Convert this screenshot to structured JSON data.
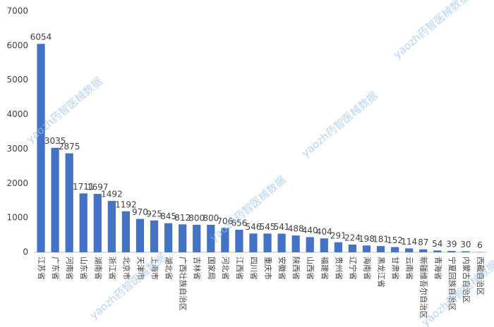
{
  "chart_data": {
    "type": "bar",
    "categories": [
      "江苏省",
      "广东省",
      "河南省",
      "山东省",
      "湖南省",
      "浙江省",
      "北京市",
      "天津市",
      "上海市",
      "湖北省",
      "广西壮族自治区",
      "吉林省",
      "国家局",
      "河北省",
      "江西省",
      "四川省",
      "重庆市",
      "安徽省",
      "陕西省",
      "山西省",
      "福建省",
      "贵州省",
      "辽宁省",
      "海南省",
      "黑龙江省",
      "甘肃省",
      "云南省",
      "新疆维吾尔自治区",
      "青海省",
      "宁夏回族自治区",
      "内蒙古自治区",
      "西藏自治区"
    ],
    "values": [
      6054,
      3035,
      2875,
      1711,
      1697,
      1492,
      1192,
      970,
      925,
      845,
      812,
      800,
      800,
      706,
      656,
      546,
      545,
      541,
      488,
      440,
      404,
      291,
      224,
      198,
      181,
      152,
      114,
      87,
      54,
      39,
      30,
      6
    ],
    "color": "#4472c4",
    "ylim": [
      0,
      7000
    ],
    "yticks": [
      0,
      1000,
      2000,
      3000,
      4000,
      5000,
      6000,
      7000
    ],
    "grid": false,
    "watermark": "yaozh药智医械数据"
  }
}
